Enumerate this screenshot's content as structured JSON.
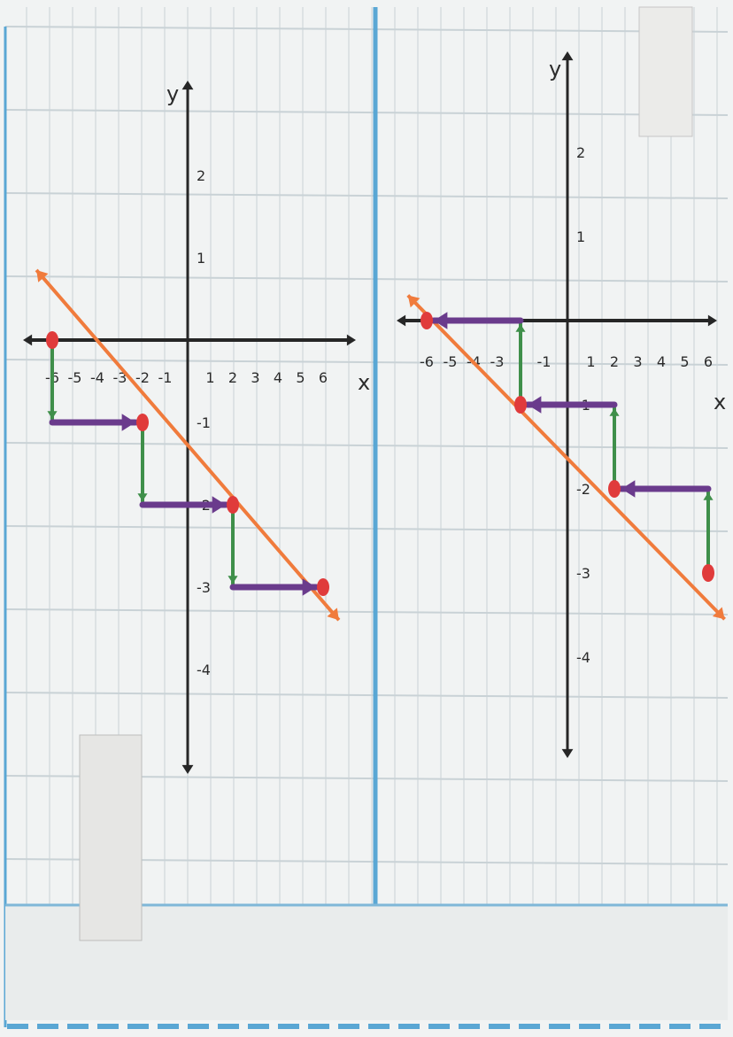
{
  "colors": {
    "paper": "#f1f3f3",
    "grid": "#c9d2d6",
    "margin_line": "#5aa7d4",
    "axis": "#262626",
    "line": "#f07b3c",
    "point": "#e03b3b",
    "run_arrow": "#6a3b8c",
    "rise_arrow": "#3f8f4a"
  },
  "icons": [
    "arrow-head"
  ],
  "chart_data": [
    {
      "type": "line",
      "title": "",
      "xlabel": "x",
      "ylabel": "y",
      "xlim": [
        -7,
        7
      ],
      "ylim": [
        -4.6,
        2.6
      ],
      "x_tick_labels": [
        "-6",
        "-5",
        "-4",
        "-3",
        "-2",
        "-1",
        "1",
        "2",
        "3",
        "4",
        "5",
        "6"
      ],
      "y_tick_labels": [
        "2",
        "1",
        "-1",
        "-2",
        "-3",
        "-4"
      ],
      "line": {
        "x1": -6.7,
        "y1": 0.85,
        "x2": 6.7,
        "y2": -3.4
      },
      "points": [
        {
          "x": -6,
          "y": 0
        },
        {
          "x": -2,
          "y": -1
        },
        {
          "x": 2,
          "y": -2
        },
        {
          "x": 6,
          "y": -3
        }
      ],
      "rise_arrows": [
        {
          "x": -6,
          "y_from": 0,
          "y_to": -1
        },
        {
          "x": -2,
          "y_from": -1,
          "y_to": -2
        },
        {
          "x": 2,
          "y_from": -2,
          "y_to": -3
        }
      ],
      "run_arrows": [
        {
          "y": -1,
          "x_from": -6,
          "x_to": -2
        },
        {
          "y": -2,
          "x_from": -2,
          "x_to": 2
        },
        {
          "y": -3,
          "x_from": 2,
          "x_to": 6
        }
      ]
    },
    {
      "type": "line",
      "title": "",
      "xlabel": "x",
      "ylabel": "y",
      "xlim": [
        -7,
        7
      ],
      "ylim": [
        -4.6,
        2.6
      ],
      "x_tick_labels": [
        "-6",
        "-5",
        "-4",
        "-3",
        "-1",
        "1",
        "2",
        "3",
        "4",
        "5",
        "6"
      ],
      "y_tick_labels": [
        "2",
        "1",
        "-1",
        "-2",
        "-3",
        "-4"
      ],
      "line": {
        "x1": -6.8,
        "y1": 0.3,
        "x2": 6.7,
        "y2": -3.55
      },
      "points": [
        {
          "x": -6,
          "y": 0
        },
        {
          "x": -2,
          "y": -1
        },
        {
          "x": 2,
          "y": -2
        },
        {
          "x": 6,
          "y": -3
        }
      ],
      "rise_arrows": [
        {
          "x": -2,
          "y_from": -1,
          "y_to": 0
        },
        {
          "x": 2,
          "y_from": -2,
          "y_to": -1
        },
        {
          "x": 6,
          "y_from": -3,
          "y_to": -2
        }
      ],
      "run_arrows": [
        {
          "y": 0,
          "x_from": -2,
          "x_to": -6
        },
        {
          "y": -1,
          "x_from": 2,
          "x_to": -2
        },
        {
          "y": -2,
          "x_from": 6,
          "x_to": 2
        }
      ]
    }
  ]
}
